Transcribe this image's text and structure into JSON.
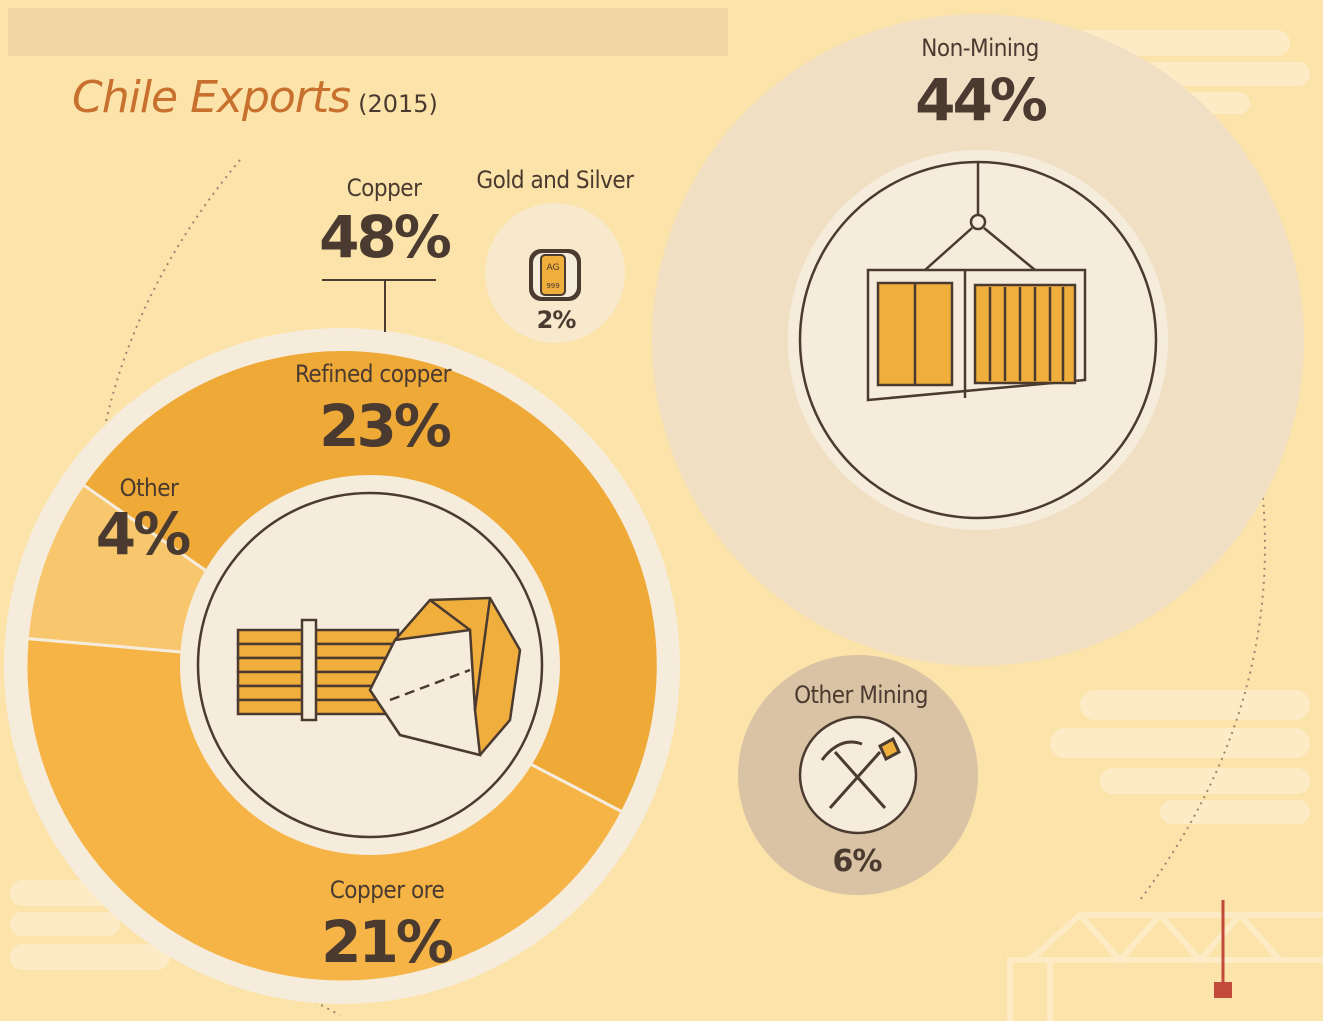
{
  "title": {
    "main": "Chile Exports",
    "year": "(2015)"
  },
  "labels": {
    "copper_total": {
      "name": "Copper",
      "value": "48%"
    },
    "gold_silver": {
      "name": "Gold and Silver",
      "value": "2%",
      "bar_text": "AG",
      "bar_sub": "999"
    },
    "refined_copper": {
      "name": "Refined copper",
      "value": "23%"
    },
    "other": {
      "name": "Other",
      "value": "4%"
    },
    "copper_ore": {
      "name": "Copper ore",
      "value": "21%"
    },
    "non_mining": {
      "name": "Non-Mining",
      "value": "44%"
    },
    "other_mining": {
      "name": "Other Mining",
      "value": "6%"
    }
  },
  "chart_data": {
    "type": "pie",
    "title": "Chile Exports (2015)",
    "groups": [
      {
        "name": "Copper",
        "value": 48,
        "unit": "%",
        "breakdown": [
          {
            "name": "Refined copper",
            "value": 23
          },
          {
            "name": "Copper ore",
            "value": 21
          },
          {
            "name": "Other",
            "value": 4
          }
        ]
      },
      {
        "name": "Gold and Silver",
        "value": 2,
        "unit": "%"
      },
      {
        "name": "Non-Mining",
        "value": 44,
        "unit": "%"
      },
      {
        "name": "Other Mining",
        "value": 6,
        "unit": "%"
      }
    ],
    "colors": {
      "background": "#fbe3a9",
      "refined_copper": "#eea936",
      "copper_ore": "#f5b445",
      "other": "#f8c66c",
      "inner": "#f6ecdc",
      "non_mining": "#f1dfc3",
      "gold_silver": "#f8e8cc",
      "other_mining": "#d9c3a4",
      "text": "#4a3a30",
      "title": "#c8702d"
    }
  }
}
